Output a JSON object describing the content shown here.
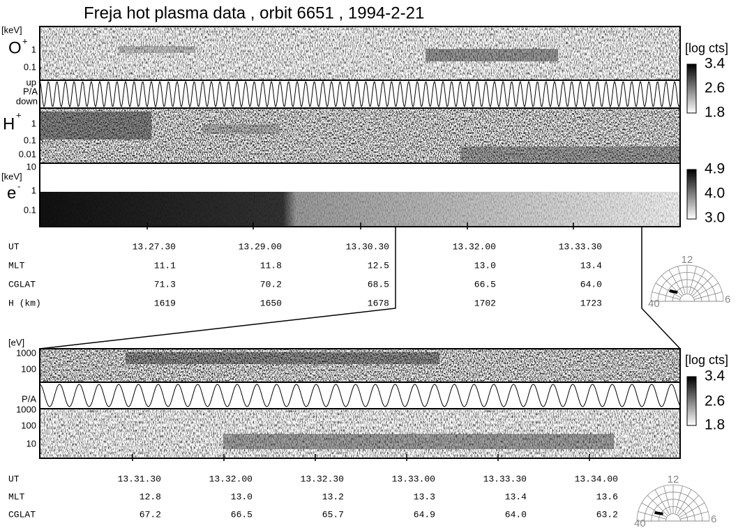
{
  "title": "Freja hot plasma data ,  orbit 6651 ,   1994-2-21",
  "overview": {
    "o_panel": {
      "unit": "[keV]",
      "ion": "O",
      "charge": "+",
      "ticks": [
        "1",
        "0.1"
      ]
    },
    "pa_panel": {
      "up": "up",
      "label": "P/A",
      "down": "down"
    },
    "h_panel": {
      "ion": "H",
      "charge": "+",
      "ticks": [
        "1",
        "0.1",
        "0.01"
      ]
    },
    "e_panel": {
      "top": "10",
      "unit": "[keV]",
      "species": "e",
      "charge": "-",
      "ticks": [
        "1",
        "0.1"
      ]
    },
    "colorbar_ions": {
      "label": "[log cts]",
      "ticks": [
        "3.4",
        "2.6",
        "1.8"
      ]
    },
    "colorbar_electrons": {
      "ticks": [
        "4.9",
        "4.0",
        "3.0"
      ]
    },
    "ephemeris": [
      {
        "label": "UT",
        "values": [
          "13.27.30",
          "13.29.00",
          "13.30.30",
          "13.32.00",
          "13.33.30"
        ]
      },
      {
        "label": "MLT",
        "values": [
          "11.1",
          "11.8",
          "12.5",
          "13.0",
          "13.4"
        ]
      },
      {
        "label": "CGLAT",
        "values": [
          "71.3",
          "70.2",
          "68.5",
          "66.5",
          "64.0"
        ]
      },
      {
        "label": "H (km)",
        "values": [
          "1619",
          "1650",
          "1678",
          "1702",
          "1723"
        ]
      }
    ],
    "dial": {
      "top": "12",
      "left": "40",
      "right": "6"
    }
  },
  "zoom": {
    "o_panel": {
      "unit": "[eV]",
      "ticks": [
        "1000",
        "100"
      ]
    },
    "pa_panel": {
      "label": "P/A"
    },
    "h_panel": {
      "ticks": [
        "1000",
        "100",
        "10"
      ]
    },
    "colorbar": {
      "label": "[log cts]",
      "ticks": [
        "3.4",
        "2.6",
        "1.8"
      ]
    },
    "ephemeris": [
      {
        "label": "UT",
        "values": [
          "13.31.30",
          "13.32.00",
          "13.32.30",
          "13.33.00",
          "13.33.30",
          "13.34.00"
        ]
      },
      {
        "label": "MLT",
        "values": [
          "12.8",
          "13.0",
          "13.2",
          "13.3",
          "13.4",
          "13.6"
        ]
      },
      {
        "label": "CGLAT",
        "values": [
          "67.2",
          "66.5",
          "65.7",
          "64.9",
          "64.0",
          "63.2"
        ]
      }
    ],
    "dial": {
      "top": "12",
      "left": "40",
      "right": "6"
    }
  }
}
